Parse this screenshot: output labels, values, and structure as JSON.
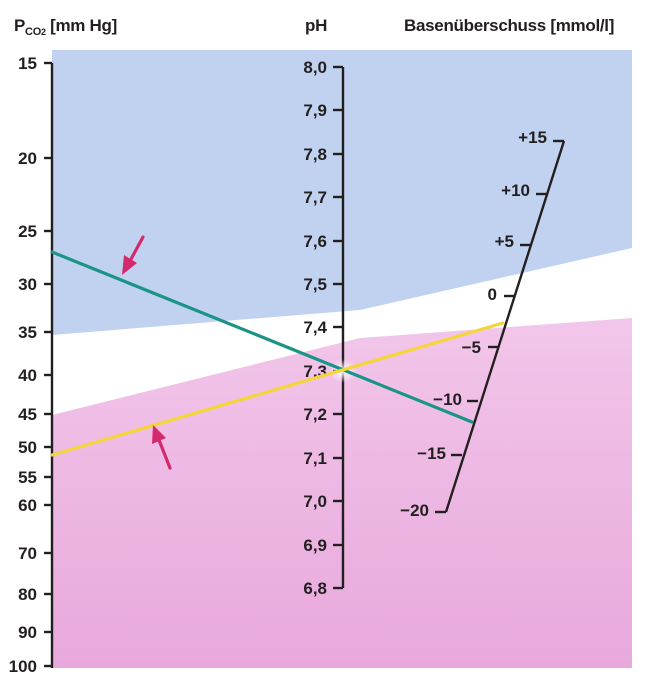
{
  "headers": {
    "pco2": {
      "symbol": "P",
      "subscript": "CO",
      "subscript_2": "2",
      "unit": "[mm Hg]"
    },
    "ph": "pH",
    "base_excess": "Basenüberschuss [mmol/l]"
  },
  "pco2_scale": {
    "ticks": [
      "15",
      "20",
      "25",
      "30",
      "35",
      "40",
      "45",
      "50",
      "55",
      "60",
      "70",
      "80",
      "90",
      "100"
    ]
  },
  "ph_scale": {
    "ticks": [
      "8,0",
      "7,9",
      "7,8",
      "7,7",
      "7,6",
      "7,5",
      "7,4",
      "7,3",
      "7,2",
      "7,1",
      "7,0",
      "6,9",
      "6,8"
    ]
  },
  "base_excess_scale": {
    "ticks": [
      "+15",
      "+10",
      "+5",
      "0",
      "−5",
      "−10",
      "−15",
      "−20"
    ]
  },
  "colors": {
    "upper_zone": "#c0d2f0",
    "lower_zone": "#eeb8e2",
    "teal_line": "#1a9486",
    "yellow_line": "#f5d63a",
    "arrow": "#d42a6c",
    "axis": "#231f20"
  }
}
